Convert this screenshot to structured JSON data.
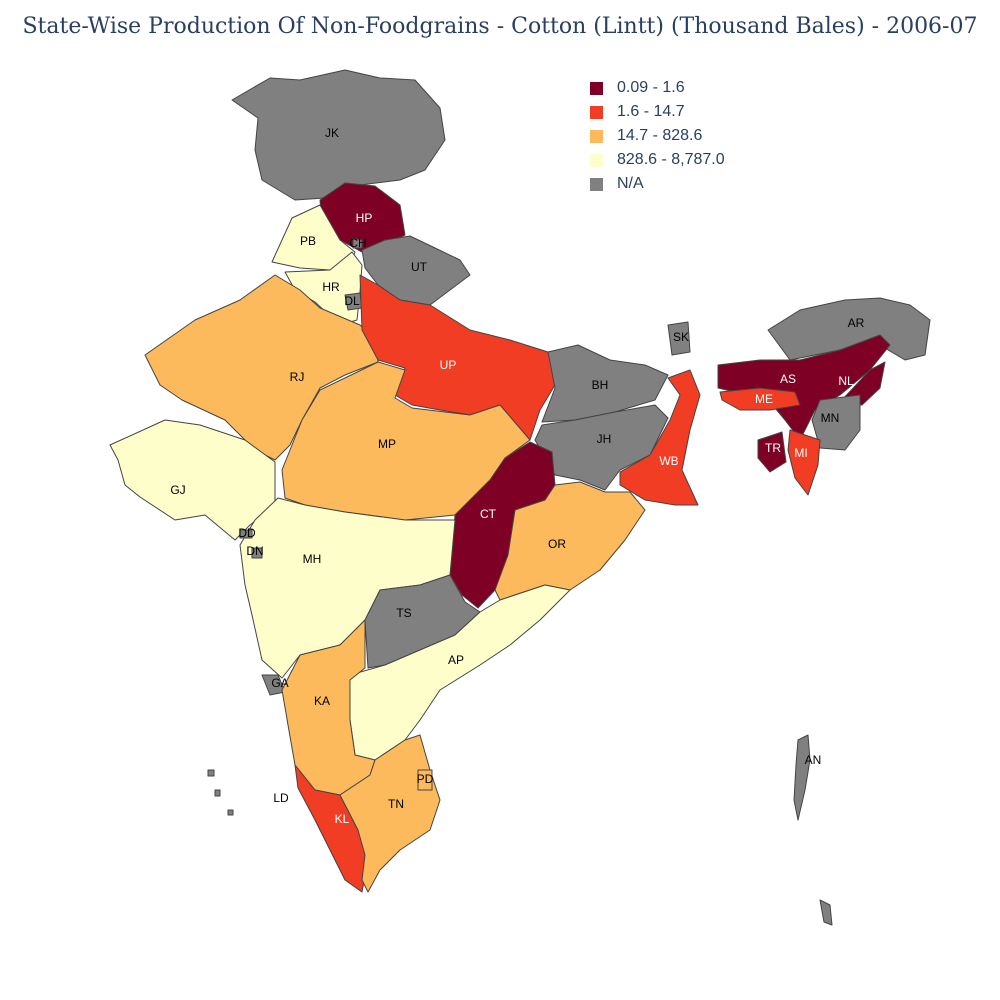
{
  "title": "State-Wise Production Of Non-Foodgrains - Cotton (Lintt) (Thousand Bales) - 2006-07",
  "legend": [
    {
      "label": "0.09 - 1.6",
      "color": "#7f0025"
    },
    {
      "label": "1.6 - 14.7",
      "color": "#f03d23"
    },
    {
      "label": "14.7 - 828.6",
      "color": "#fcba5c"
    },
    {
      "label": "828.6 - 8,787.0",
      "color": "#fefecb"
    },
    {
      "label": "N/A",
      "color": "#808080"
    }
  ],
  "states": [
    {
      "code": "JK",
      "class": "N/A"
    },
    {
      "code": "HP",
      "class": "0.09 - 1.6"
    },
    {
      "code": "PB",
      "class": "828.6 - 8,787.0"
    },
    {
      "code": "CH",
      "class": "N/A"
    },
    {
      "code": "HR",
      "class": "828.6 - 8,787.0"
    },
    {
      "code": "DL",
      "class": "N/A"
    },
    {
      "code": "UT",
      "class": "N/A"
    },
    {
      "code": "RJ",
      "class": "14.7 - 828.6"
    },
    {
      "code": "UP",
      "class": "1.6 - 14.7"
    },
    {
      "code": "GJ",
      "class": "828.6 - 8,787.0"
    },
    {
      "code": "MP",
      "class": "14.7 - 828.6"
    },
    {
      "code": "BH",
      "class": "N/A"
    },
    {
      "code": "JH",
      "class": "N/A"
    },
    {
      "code": "WB",
      "class": "1.6 - 14.7"
    },
    {
      "code": "SK",
      "class": "N/A"
    },
    {
      "code": "AR",
      "class": "N/A"
    },
    {
      "code": "AS",
      "class": "0.09 - 1.6"
    },
    {
      "code": "NL",
      "class": "0.09 - 1.6"
    },
    {
      "code": "ME",
      "class": "1.6 - 14.7"
    },
    {
      "code": "MN",
      "class": "N/A"
    },
    {
      "code": "TR",
      "class": "0.09 - 1.6"
    },
    {
      "code": "MI",
      "class": "1.6 - 14.7"
    },
    {
      "code": "CT",
      "class": "0.09 - 1.6"
    },
    {
      "code": "OR",
      "class": "14.7 - 828.6"
    },
    {
      "code": "MH",
      "class": "828.6 - 8,787.0"
    },
    {
      "code": "DD",
      "class": "N/A"
    },
    {
      "code": "DN",
      "class": "N/A"
    },
    {
      "code": "TS",
      "class": "N/A"
    },
    {
      "code": "AP",
      "class": "828.6 - 8,787.0"
    },
    {
      "code": "GA",
      "class": "N/A"
    },
    {
      "code": "KA",
      "class": "14.7 - 828.6"
    },
    {
      "code": "KL",
      "class": "1.6 - 14.7"
    },
    {
      "code": "TN",
      "class": "14.7 - 828.6"
    },
    {
      "code": "PD",
      "class": "14.7 - 828.6"
    },
    {
      "code": "LD",
      "class": "N/A"
    },
    {
      "code": "AN",
      "class": "N/A"
    }
  ]
}
